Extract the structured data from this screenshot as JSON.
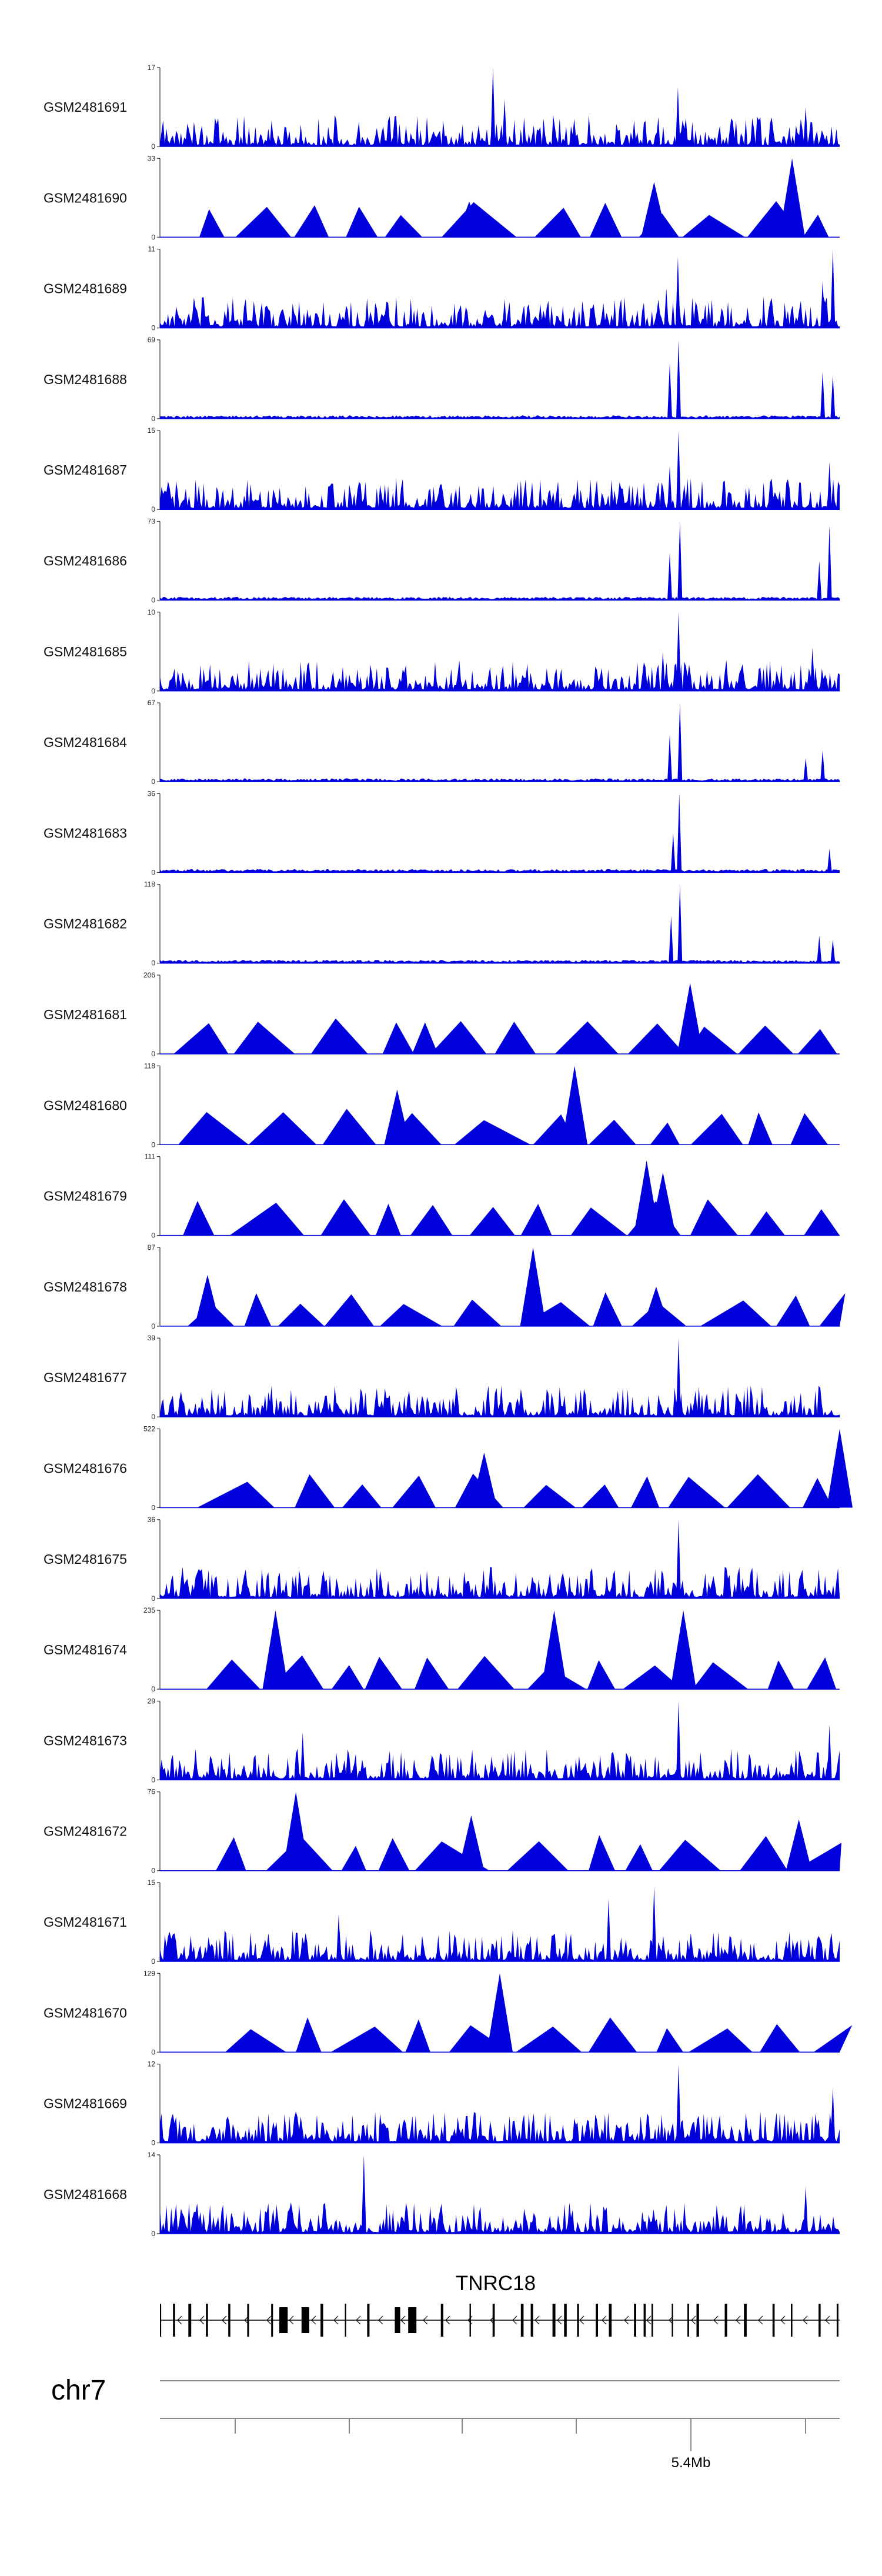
{
  "chart_data": {
    "type": "area",
    "colors": {
      "signal": "#0000dd",
      "axis": "#333333",
      "gene": "#000000",
      "ruler": "#888888"
    },
    "tracks": [
      {
        "name": "GSM2481691",
        "ymax": "17",
        "ymin": "0",
        "pattern": "noise",
        "peaks": [
          [
            0.49,
            1.0
          ],
          [
            0.507,
            0.6
          ],
          [
            0.762,
            0.75
          ],
          [
            0.95,
            0.5
          ]
        ]
      },
      {
        "name": "GSM2481690",
        "ymax": "33",
        "ymin": "0",
        "pattern": "triangles",
        "peaks": [
          [
            0.455,
            0.45
          ],
          [
            0.727,
            0.7
          ],
          [
            0.93,
            1.0
          ]
        ]
      },
      {
        "name": "GSM2481689",
        "ymax": "11",
        "ymin": "0",
        "pattern": "noise",
        "peaks": [
          [
            0.762,
            0.9
          ],
          [
            0.745,
            0.5
          ],
          [
            0.99,
            1.0
          ],
          [
            0.975,
            0.6
          ]
        ]
      },
      {
        "name": "GSM2481688",
        "ymax": "69",
        "ymin": "0",
        "pattern": "quiet",
        "peaks": [
          [
            0.763,
            1.0
          ],
          [
            0.75,
            0.7
          ],
          [
            0.975,
            0.6
          ],
          [
            0.99,
            0.55
          ]
        ]
      },
      {
        "name": "GSM2481687",
        "ymax": "15",
        "ymin": "0",
        "pattern": "noise",
        "peaks": [
          [
            0.763,
            1.0
          ],
          [
            0.75,
            0.55
          ],
          [
            0.985,
            0.6
          ]
        ]
      },
      {
        "name": "GSM2481686",
        "ymax": "73",
        "ymin": "0",
        "pattern": "quiet",
        "peaks": [
          [
            0.765,
            1.0
          ],
          [
            0.75,
            0.6
          ],
          [
            0.985,
            0.95
          ],
          [
            0.97,
            0.5
          ]
        ]
      },
      {
        "name": "GSM2481685",
        "ymax": "10",
        "ymin": "0",
        "pattern": "noise",
        "peaks": [
          [
            0.763,
            1.0
          ],
          [
            0.74,
            0.5
          ],
          [
            0.96,
            0.55
          ]
        ]
      },
      {
        "name": "GSM2481684",
        "ymax": "67",
        "ymin": "0",
        "pattern": "quiet",
        "peaks": [
          [
            0.765,
            1.0
          ],
          [
            0.75,
            0.6
          ],
          [
            0.975,
            0.4
          ],
          [
            0.95,
            0.3
          ]
        ]
      },
      {
        "name": "GSM2481683",
        "ymax": "36",
        "ymin": "0",
        "pattern": "quiet",
        "peaks": [
          [
            0.764,
            1.0
          ],
          [
            0.755,
            0.5
          ],
          [
            0.985,
            0.3
          ]
        ]
      },
      {
        "name": "GSM2481682",
        "ymax": "118",
        "ymin": "0",
        "pattern": "quiet",
        "peaks": [
          [
            0.765,
            1.0
          ],
          [
            0.752,
            0.6
          ],
          [
            0.97,
            0.35
          ],
          [
            0.99,
            0.3
          ]
        ]
      },
      {
        "name": "GSM2481681",
        "ymax": "206",
        "ymin": "0",
        "pattern": "triangles",
        "peaks": [
          [
            0.78,
            0.9
          ],
          [
            0.39,
            0.4
          ]
        ]
      },
      {
        "name": "GSM2481680",
        "ymax": "118",
        "ymin": "0",
        "pattern": "triangles",
        "peaks": [
          [
            0.349,
            0.7
          ],
          [
            0.61,
            1.0
          ]
        ]
      },
      {
        "name": "GSM2481679",
        "ymax": "111",
        "ymin": "0",
        "pattern": "triangles",
        "peaks": [
          [
            0.716,
            0.95
          ],
          [
            0.74,
            0.8
          ]
        ]
      },
      {
        "name": "GSM2481678",
        "ymax": "87",
        "ymin": "0",
        "pattern": "triangles",
        "peaks": [
          [
            0.07,
            0.65
          ],
          [
            0.549,
            1.0
          ],
          [
            0.73,
            0.5
          ]
        ]
      },
      {
        "name": "GSM2481677",
        "ymax": "39",
        "ymin": "0",
        "pattern": "noise",
        "peaks": [
          [
            0.763,
            1.0
          ]
        ]
      },
      {
        "name": "GSM2481676",
        "ymax": "522",
        "ymin": "0",
        "pattern": "triangles",
        "peaks": [
          [
            0.477,
            0.7
          ],
          [
            1.0,
            1.0
          ]
        ]
      },
      {
        "name": "GSM2481675",
        "ymax": "36",
        "ymin": "0",
        "pattern": "noise",
        "peaks": [
          [
            0.763,
            1.0
          ]
        ]
      },
      {
        "name": "GSM2481674",
        "ymax": "235",
        "ymin": "0",
        "pattern": "triangles",
        "peaks": [
          [
            0.17,
            1.0
          ],
          [
            0.77,
            1.0
          ],
          [
            0.58,
            1.0
          ]
        ]
      },
      {
        "name": "GSM2481673",
        "ymax": "29",
        "ymin": "0",
        "pattern": "noise",
        "peaks": [
          [
            0.763,
            1.0
          ],
          [
            0.21,
            0.6
          ],
          [
            0.985,
            0.7
          ]
        ]
      },
      {
        "name": "GSM2481672",
        "ymax": "76",
        "ymin": "0",
        "pattern": "triangles",
        "peaks": [
          [
            0.2,
            1.0
          ],
          [
            0.458,
            0.7
          ],
          [
            0.94,
            0.65
          ]
        ]
      },
      {
        "name": "GSM2481671",
        "ymax": "15",
        "ymin": "0",
        "pattern": "noise",
        "peaks": [
          [
            0.727,
            0.95
          ],
          [
            0.263,
            0.6
          ],
          [
            0.66,
            0.8
          ]
        ]
      },
      {
        "name": "GSM2481670",
        "ymax": "129",
        "ymin": "0",
        "pattern": "triangles",
        "peaks": [
          [
            0.5,
            1.0
          ]
        ]
      },
      {
        "name": "GSM2481669",
        "ymax": "12",
        "ymin": "0",
        "pattern": "noise",
        "peaks": [
          [
            0.763,
            1.0
          ],
          [
            0.99,
            0.7
          ]
        ]
      },
      {
        "name": "GSM2481668",
        "ymax": "14",
        "ymin": "0",
        "pattern": "noise",
        "peaks": [
          [
            0.3,
            1.0
          ],
          [
            0.95,
            0.6
          ]
        ]
      }
    ],
    "gene": {
      "name": "TNRC18"
    },
    "chromosome": "chr7",
    "ruler_label": "5.4Mb"
  }
}
